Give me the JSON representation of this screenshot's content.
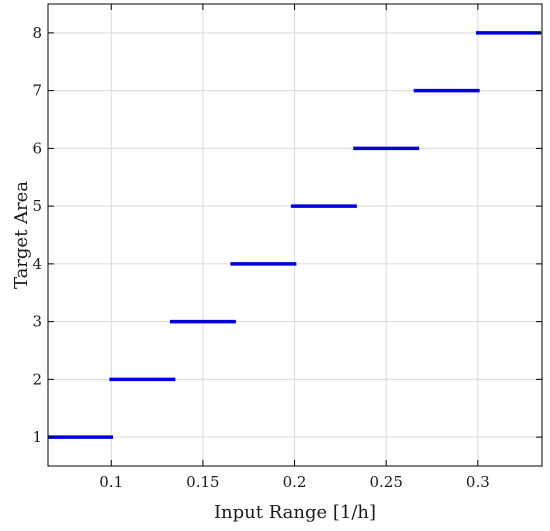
{
  "chart_data": {
    "type": "line",
    "title": "",
    "xlabel": "Input Range [1/h]",
    "ylabel": "Target Area",
    "xlim": [
      0.0655,
      0.335
    ],
    "ylim": [
      0.5,
      8.5
    ],
    "x_ticks": [
      0.1,
      0.15,
      0.2,
      0.25,
      0.3
    ],
    "x_tick_labels": [
      "0.1",
      "0.15",
      "0.2",
      "0.25",
      "0.3"
    ],
    "y_ticks": [
      1,
      2,
      3,
      4,
      5,
      6,
      7,
      8
    ],
    "y_tick_labels": [
      "1",
      "2",
      "3",
      "4",
      "5",
      "6",
      "7",
      "8"
    ],
    "grid": true,
    "legend": "none",
    "series_color": "#0000dd",
    "segments": [
      {
        "y": 1,
        "x_start": 0.0655,
        "x_end": 0.101
      },
      {
        "y": 2,
        "x_start": 0.099,
        "x_end": 0.135
      },
      {
        "y": 3,
        "x_start": 0.132,
        "x_end": 0.168
      },
      {
        "y": 4,
        "x_start": 0.165,
        "x_end": 0.201
      },
      {
        "y": 5,
        "x_start": 0.198,
        "x_end": 0.234
      },
      {
        "y": 6,
        "x_start": 0.232,
        "x_end": 0.268
      },
      {
        "y": 7,
        "x_start": 0.265,
        "x_end": 0.301
      },
      {
        "y": 8,
        "x_start": 0.299,
        "x_end": 0.335
      }
    ]
  }
}
